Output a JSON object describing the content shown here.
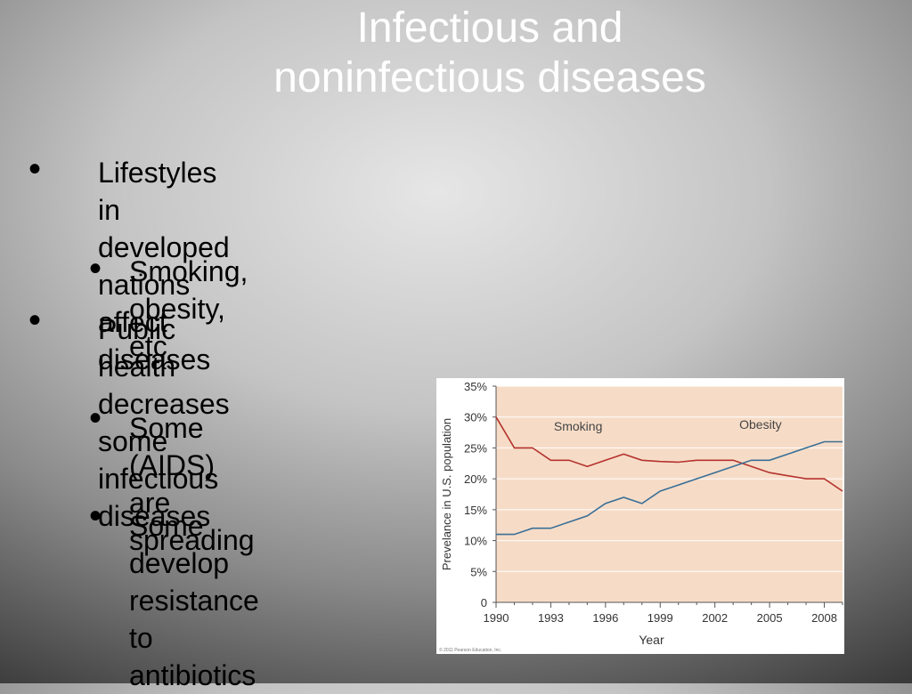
{
  "slide": {
    "title_line1": "Infectious and",
    "title_line2": "noninfectious diseases",
    "bullets": [
      "Lifestyles in developed nations affect\ndiseases",
      "Smoking, obesity, etc",
      "Public health decreases some\ninfectious diseases",
      "Some (AIDS) are\nspreading",
      "Some develop\nresistance to\n antibiotics"
    ],
    "bullet_glyph": "•"
  },
  "chart_data": {
    "type": "line",
    "xlabel": "Year",
    "ylabel": "Prevelance in U.S. population",
    "xlim": [
      1990,
      2009
    ],
    "ylim": [
      0,
      35
    ],
    "x_ticks": [
      1990,
      1993,
      1996,
      1999,
      2002,
      2005,
      2008
    ],
    "y_ticks": [
      "0",
      "5%",
      "10%",
      "15%",
      "20%",
      "25%",
      "30%",
      "35%"
    ],
    "x": [
      1990,
      1991,
      1992,
      1993,
      1994,
      1995,
      1996,
      1997,
      1998,
      1999,
      2000,
      2001,
      2002,
      2003,
      2004,
      2005,
      2006,
      2007,
      2008,
      2009
    ],
    "series": [
      {
        "name": "Smoking",
        "color": "#b5332e",
        "values": [
          30,
          25,
          25,
          23,
          23,
          22,
          23,
          24,
          23,
          22.8,
          22.7,
          23,
          23,
          23,
          22,
          21,
          20.5,
          20,
          20,
          18
        ]
      },
      {
        "name": "Obesity",
        "color": "#3a6f96",
        "values": [
          11,
          11,
          12,
          12,
          13,
          14,
          16,
          17,
          16,
          18,
          19,
          20,
          21,
          22,
          23,
          23,
          24,
          25,
          26,
          26
        ]
      }
    ],
    "background_color": "#f6dcc7",
    "copyright": "© 2011 Pearson Education, Inc."
  }
}
